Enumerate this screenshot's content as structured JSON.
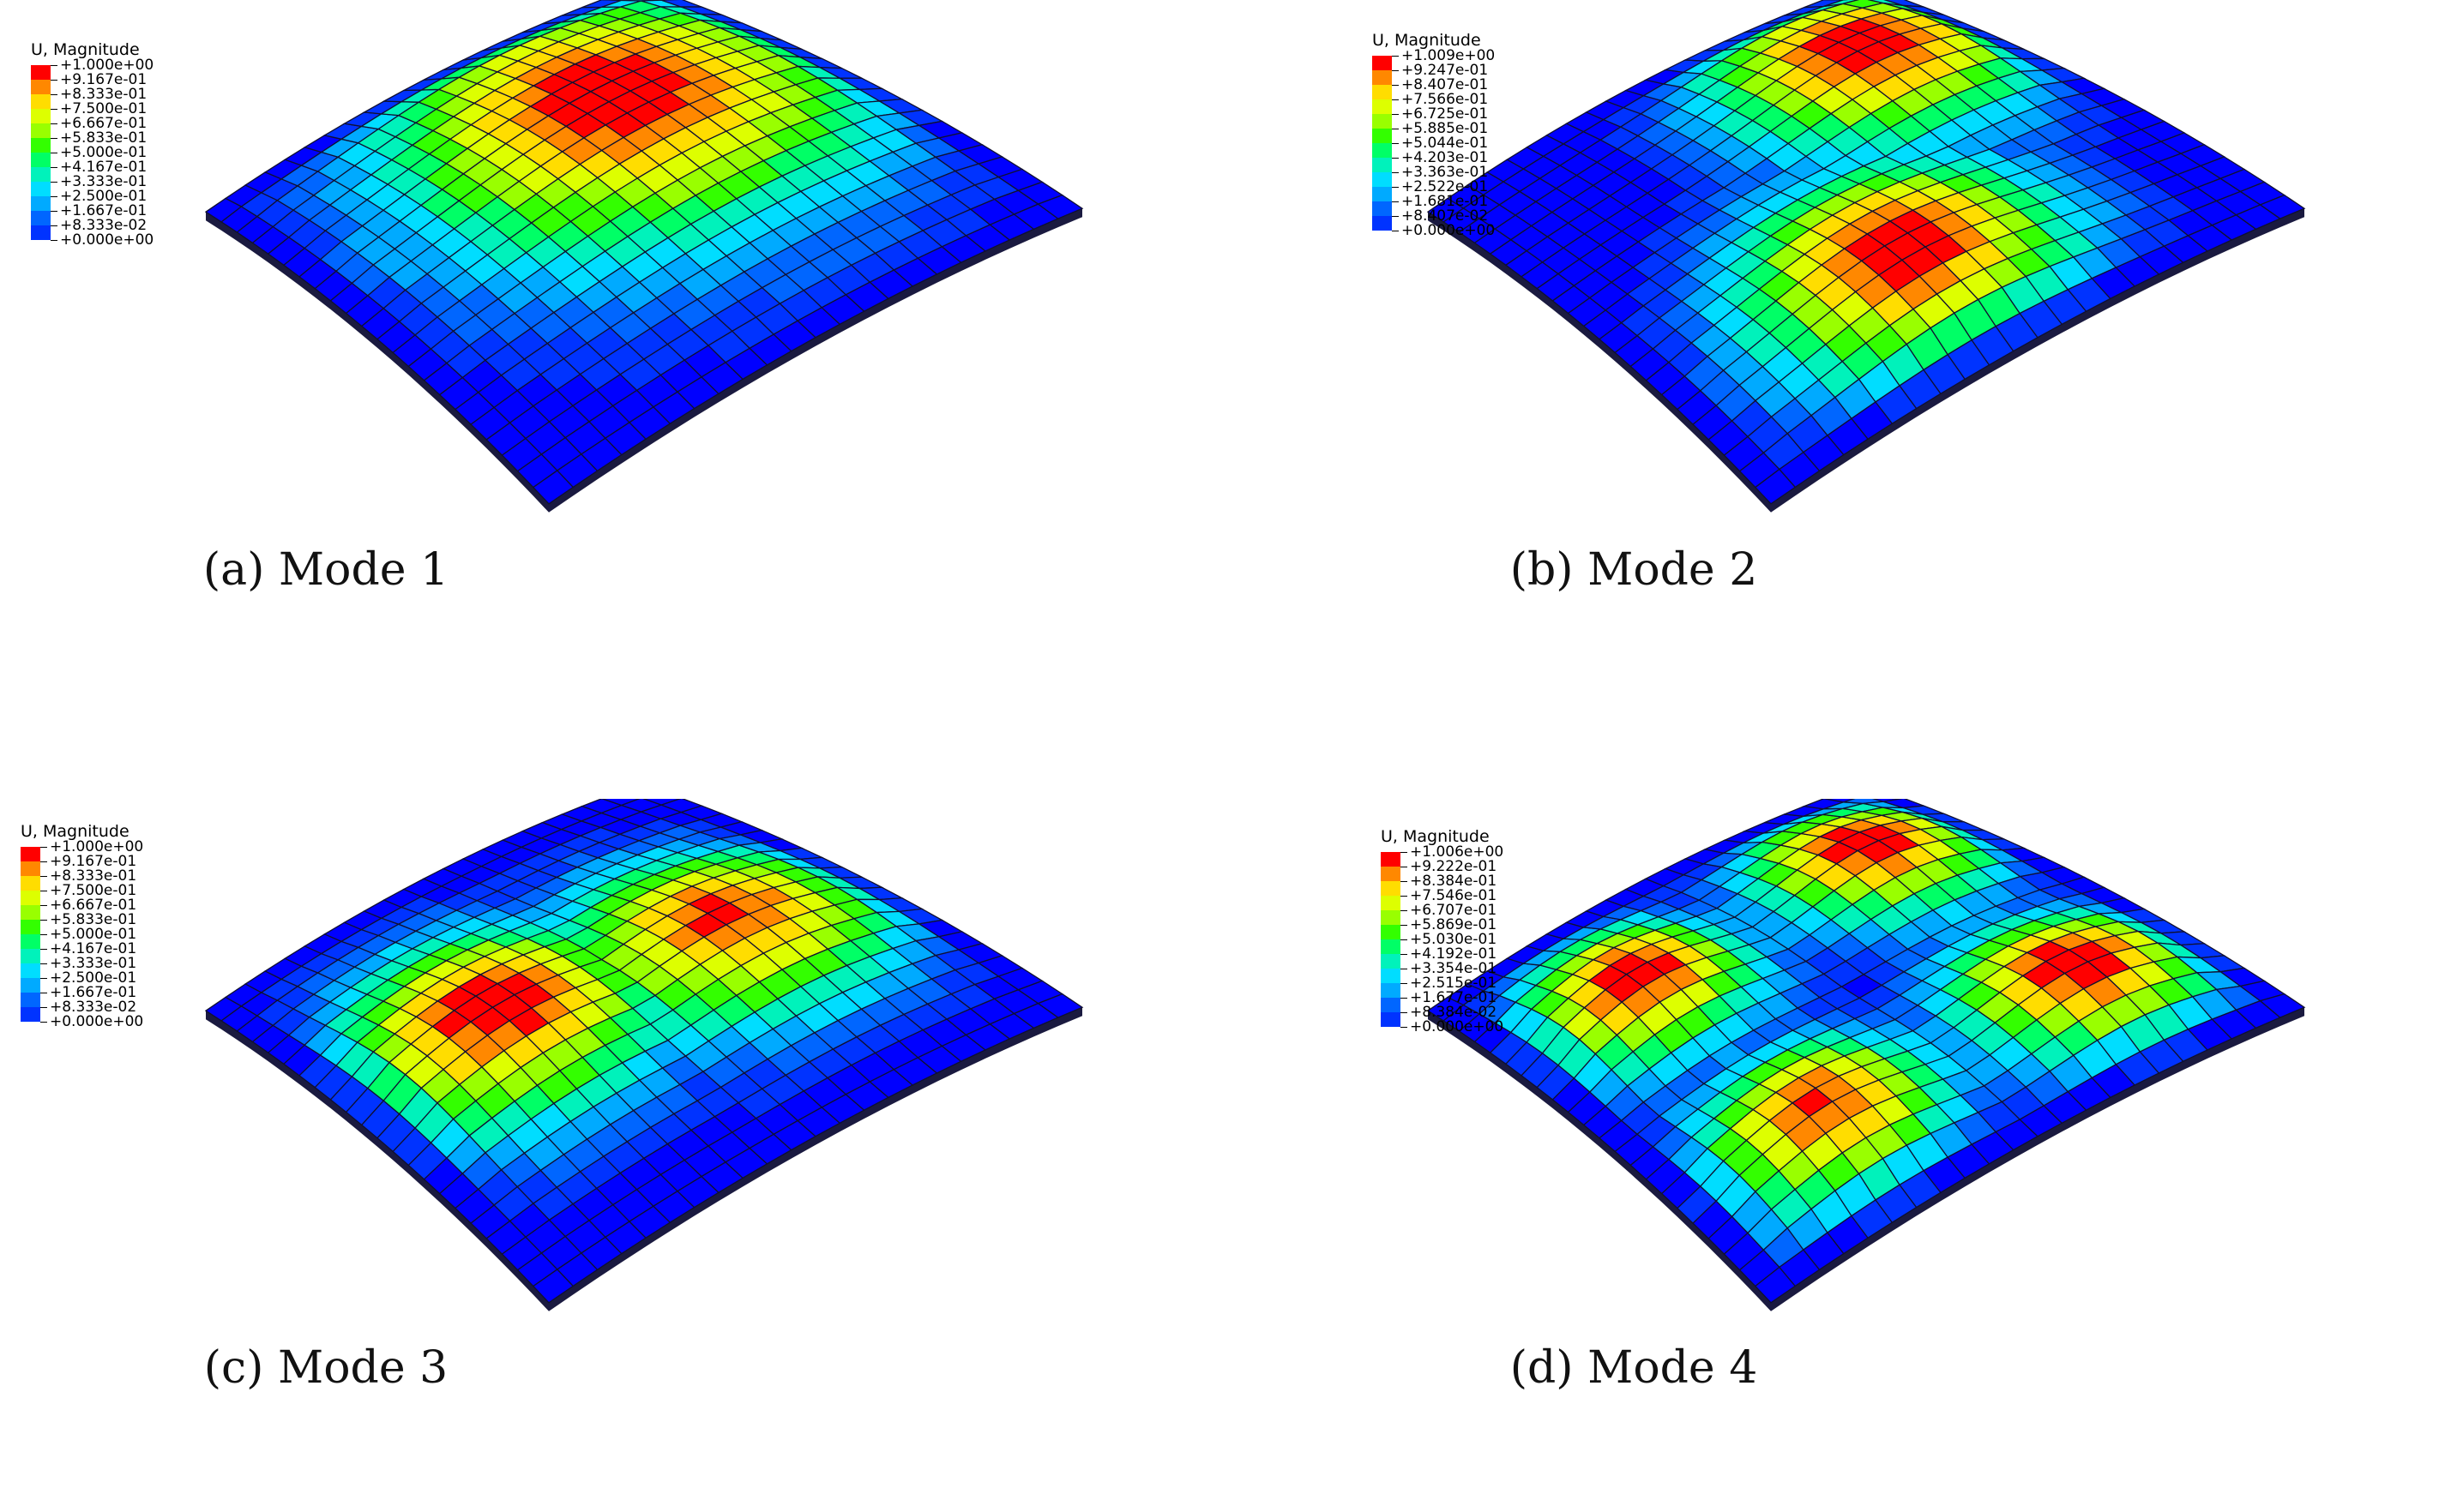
{
  "figure": {
    "panels": [
      {
        "caption": "(a) Mode 1",
        "legend": {
          "title": "U, Magnitude",
          "labels": [
            "+1.000e+00",
            "+9.167e-01",
            "+8.333e-01",
            "+7.500e-01",
            "+6.667e-01",
            "+5.833e-01",
            "+5.000e-01",
            "+4.167e-01",
            "+3.333e-01",
            "+2.500e-01",
            "+1.667e-01",
            "+8.333e-02",
            "+0.000e+00"
          ]
        },
        "peaks": [
          [
            0.62,
            0.35,
            1.0
          ]
        ]
      },
      {
        "caption": "(b) Mode 2",
        "legend": {
          "title": "U, Magnitude",
          "labels": [
            "+1.009e+00",
            "+9.247e-01",
            "+8.407e-01",
            "+7.566e-01",
            "+6.725e-01",
            "+5.885e-01",
            "+5.044e-01",
            "+4.203e-01",
            "+3.363e-01",
            "+2.522e-01",
            "+1.681e-01",
            "+8.407e-02",
            "+0.000e+00"
          ]
        },
        "peaks": [
          [
            0.75,
            0.26,
            1.0
          ],
          [
            0.43,
            0.74,
            1.0
          ]
        ]
      },
      {
        "caption": "(c) Mode 3",
        "legend": {
          "title": "U, Magnitude",
          "labels": [
            "+1.000e+00",
            "+9.167e-01",
            "+8.333e-01",
            "+7.500e-01",
            "+6.667e-01",
            "+5.833e-01",
            "+5.000e-01",
            "+4.167e-01",
            "+3.333e-01",
            "+2.500e-01",
            "+1.667e-01",
            "+8.333e-02",
            "+0.000e+00"
          ]
        },
        "peaks": [
          [
            0.28,
            0.45,
            1.0
          ],
          [
            0.7,
            0.52,
            0.95
          ]
        ]
      },
      {
        "caption": "(d) Mode 4",
        "legend": {
          "title": "U, Magnitude",
          "labels": [
            "+1.006e+00",
            "+9.222e-01",
            "+8.384e-01",
            "+7.546e-01",
            "+6.707e-01",
            "+5.869e-01",
            "+5.030e-01",
            "+4.192e-01",
            "+3.354e-01",
            "+2.515e-01",
            "+1.677e-01",
            "+8.384e-02",
            "+0.000e+00"
          ]
        },
        "peaks": [
          [
            0.24,
            0.28,
            1.0
          ],
          [
            0.76,
            0.26,
            1.0
          ],
          [
            0.26,
            0.76,
            0.95
          ],
          [
            0.76,
            0.76,
            1.0
          ]
        ]
      }
    ],
    "colormap": [
      "#0000FF",
      "#0033FF",
      "#0066FF",
      "#00AAFF",
      "#00DDFF",
      "#00F2BB",
      "#00FF66",
      "#33FF00",
      "#99FF00",
      "#DDFF00",
      "#FFDD00",
      "#FF8800",
      "#FF0000"
    ]
  }
}
